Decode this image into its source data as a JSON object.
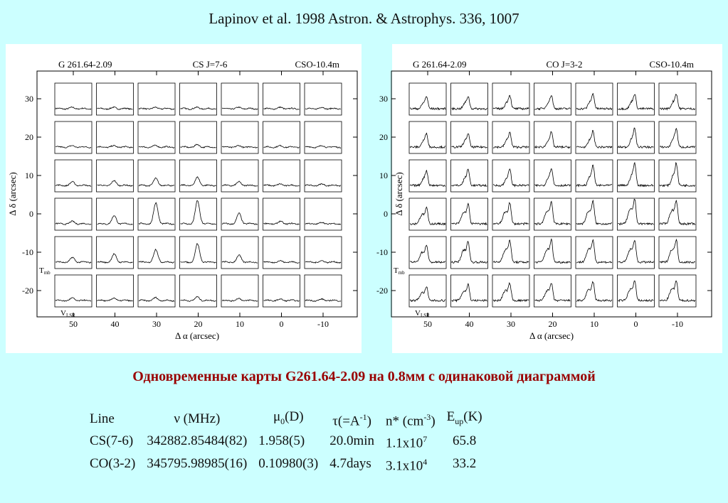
{
  "header": "Lapinov et al. 1998 Astron. & Astrophys. 336, 1007",
  "subtitle": "Одновременные карты G261.64-2.09 на 0.8мм с одинаковой диаграммой",
  "chart_data": [
    {
      "type": "line",
      "source": "G 261.64-2.09",
      "line": "CS J=7-6",
      "telescope": "CSO-10.4m",
      "xlabel": "Δ α (arcsec)",
      "ylabel": "Δ δ (arcsec)",
      "x_ticks": [
        "50",
        "40",
        "30",
        "20",
        "10",
        "0",
        "-10"
      ],
      "y_ticks": [
        "30",
        "20",
        "10",
        "0",
        "-10",
        "-20"
      ],
      "spectrum_xlabel": "V_LSR",
      "spectrum_ylabel": "T_mb",
      "grid": {
        "offsets_ra": [
          50,
          40,
          30,
          20,
          10,
          0,
          -10
        ],
        "offsets_dec": [
          30,
          20,
          10,
          0,
          -10,
          -20
        ],
        "peak_intensity": [
          [
            0.05,
            0.05,
            0.05,
            0.05,
            0.05,
            0.05,
            0.05
          ],
          [
            0.05,
            0.05,
            0.06,
            0.1,
            0.05,
            0.05,
            0.05
          ],
          [
            0.15,
            0.2,
            0.3,
            0.35,
            0.15,
            0.05,
            0.05
          ],
          [
            0.1,
            0.35,
            0.9,
            1.0,
            0.45,
            0.1,
            0.05
          ],
          [
            0.2,
            0.35,
            0.55,
            0.8,
            0.3,
            0.05,
            0.05
          ],
          [
            0.1,
            0.1,
            0.12,
            0.15,
            0.08,
            0.05,
            0.05
          ]
        ]
      }
    },
    {
      "type": "line",
      "source": "G 261.64-2.09",
      "line": "CO J=3-2",
      "telescope": "CSO-10.4m",
      "xlabel": "Δ α (arcsec)",
      "ylabel": "Δ δ (arcsec)",
      "x_ticks": [
        "50",
        "40",
        "30",
        "20",
        "10",
        "0",
        "-10"
      ],
      "y_ticks": [
        "30",
        "20",
        "10",
        "0",
        "-10",
        "-20"
      ],
      "spectrum_xlabel": "V_LSR",
      "spectrum_ylabel": "T_mb",
      "grid": {
        "offsets_ra": [
          50,
          40,
          30,
          20,
          10,
          0,
          -10
        ],
        "offsets_dec": [
          30,
          20,
          10,
          0,
          -10,
          -20
        ],
        "peak_intensity": [
          [
            0.5,
            0.5,
            0.55,
            0.55,
            0.6,
            0.6,
            0.6
          ],
          [
            0.55,
            0.55,
            0.6,
            0.6,
            0.65,
            0.75,
            0.75
          ],
          [
            0.6,
            0.65,
            0.65,
            0.7,
            0.8,
            0.9,
            0.9
          ],
          [
            0.65,
            0.8,
            0.85,
            0.9,
            0.9,
            1.0,
            0.95
          ],
          [
            0.7,
            0.85,
            0.9,
            0.9,
            0.9,
            0.9,
            0.9
          ],
          [
            0.55,
            0.65,
            0.7,
            0.7,
            0.75,
            0.8,
            0.8
          ]
        ]
      }
    }
  ],
  "table": {
    "headers": {
      "line": "Line",
      "freq": "ν (MHz)",
      "mu": "μ",
      "mu_sub": "0",
      "mu_unit": "(D)",
      "tau": "τ(=A",
      "tau_sup": "-1",
      "tau_close": ")",
      "n": "n* (cm",
      "n_sup": "-3",
      "n_close": ")",
      "e": "E",
      "e_sub": "up",
      "e_unit": "(K)"
    },
    "rows": [
      {
        "line": "CS(7-6)",
        "freq": "342882.85484(82)",
        "mu": "1.958(5)",
        "tau": "20.0min",
        "n": "1.1x10",
        "n_exp": "7",
        "e": "65.8"
      },
      {
        "line": "CO(3-2)",
        "freq": "345795.98985(16)",
        "mu": "0.10980(3)",
        "tau": "4.7days",
        "n": "3.1x10",
        "n_exp": "4",
        "e": "33.2"
      }
    ]
  }
}
